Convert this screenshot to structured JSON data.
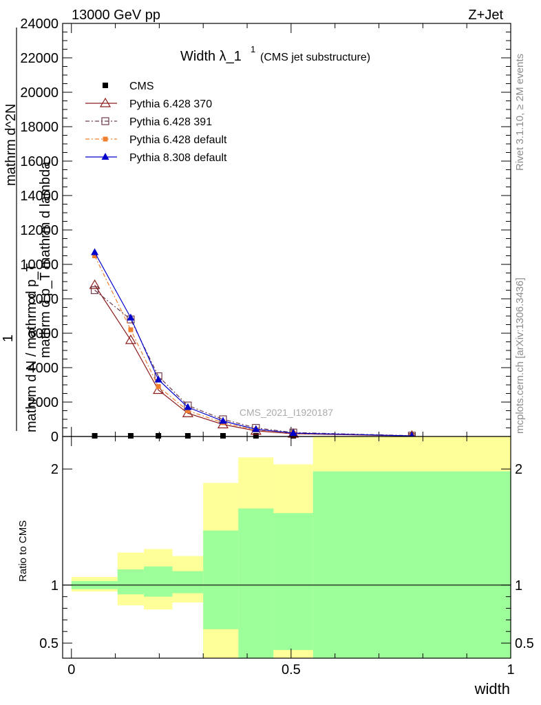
{
  "header": {
    "left": "13000 GeV pp",
    "right": "Z+Jet"
  },
  "side_labels": {
    "rivet": "Rivet 3.1.10, ≥ 2M events",
    "mcplots": "mcplots.cern.ch [arXiv:1306.3436]"
  },
  "chart_data": [
    {
      "type": "line",
      "title_main": "Width λ_1",
      "title_sup": "1",
      "title_note": "(CMS jet substructure)",
      "watermark": "CMS_2021_I1920187",
      "xlabel": "",
      "ylabel_numerator": "1",
      "ylabel_lines": [
        "mathrm d N / mathrm d p_T",
        "mathrm d N",
        "mathrm d p_T mathrm d lambda"
      ],
      "ylabel_top": "mathrm d^2N",
      "xlim": [
        -0.02,
        1.0
      ],
      "ylim": [
        0,
        24000
      ],
      "yticks": [
        0,
        2000,
        4000,
        6000,
        8000,
        10000,
        12000,
        14000,
        16000,
        18000,
        20000,
        22000,
        24000
      ],
      "ytick_labels": [
        "0",
        "2000",
        "4000",
        "6000",
        "8000",
        "10000",
        "12000",
        "14000",
        "16000",
        "18000",
        "20000",
        "22000",
        "24000"
      ],
      "legend_position": "top-left",
      "series": [
        {
          "name": "CMS",
          "color": "#000000",
          "marker": "square",
          "line": "none",
          "x": [
            0.053,
            0.135,
            0.198,
            0.265,
            0.345,
            0.42,
            0.505,
            0.775
          ],
          "y": [
            0,
            0,
            0,
            0,
            0,
            0,
            0,
            0
          ]
        },
        {
          "name": "Pythia 6.428 370",
          "color": "#8b1a1a",
          "marker": "triangle-open",
          "line": "solid",
          "x": [
            0.053,
            0.135,
            0.198,
            0.265,
            0.345,
            0.42,
            0.505,
            0.775
          ],
          "y": [
            8800,
            5600,
            2700,
            1350,
            700,
            330,
            160,
            30
          ]
        },
        {
          "name": "Pythia 6.428 391",
          "color": "#6e3a4a",
          "marker": "square-open",
          "line": "dashdot",
          "x": [
            0.053,
            0.135,
            0.198,
            0.265,
            0.345,
            0.42,
            0.505,
            0.775
          ],
          "y": [
            8500,
            6800,
            3500,
            1800,
            1000,
            500,
            230,
            50
          ]
        },
        {
          "name": "Pythia 6.428 default",
          "color": "#f08030",
          "marker": "square-filled",
          "line": "dashdot",
          "x": [
            0.053,
            0.135,
            0.198,
            0.265,
            0.345,
            0.42,
            0.505,
            0.775
          ],
          "y": [
            10500,
            6200,
            2900,
            1500,
            800,
            380,
            180,
            40
          ]
        },
        {
          "name": "Pythia 8.308 default",
          "color": "#0000cc",
          "marker": "triangle-filled",
          "line": "solid",
          "x": [
            0.053,
            0.135,
            0.198,
            0.265,
            0.345,
            0.42,
            0.505,
            0.775
          ],
          "y": [
            10700,
            6900,
            3300,
            1700,
            900,
            420,
            200,
            35
          ]
        }
      ]
    },
    {
      "type": "area",
      "ylabel": "Ratio to CMS",
      "xlabel": "width",
      "xlim": [
        -0.02,
        1.0
      ],
      "ylim": [
        0.37,
        2.28
      ],
      "xticks": [
        0,
        0.5,
        1
      ],
      "xtick_labels": [
        "0",
        "0.5",
        "1"
      ],
      "yticks": [
        0.5,
        1,
        2
      ],
      "ytick_labels": [
        "0.5",
        "1",
        "2"
      ],
      "bins": [
        {
          "x0": 0.0,
          "x1": 0.105,
          "green": [
            0.965,
            1.035
          ],
          "yellow": [
            0.945,
            1.07
          ]
        },
        {
          "x0": 0.105,
          "x1": 0.165,
          "green": [
            0.92,
            1.135
          ],
          "yellow": [
            0.825,
            1.28
          ]
        },
        {
          "x0": 0.165,
          "x1": 0.23,
          "green": [
            0.9,
            1.16
          ],
          "yellow": [
            0.79,
            1.31
          ]
        },
        {
          "x0": 0.23,
          "x1": 0.3,
          "green": [
            0.93,
            1.12
          ],
          "yellow": [
            0.85,
            1.25
          ]
        },
        {
          "x0": 0.3,
          "x1": 0.38,
          "green": [
            0.37,
            1.47
          ],
          "yellow": [
            0.37,
            1.88
          ]
        },
        {
          "x0": 0.38,
          "x1": 0.46,
          "green": [
            0.37,
            1.66
          ],
          "yellow": [
            0.37,
            2.1
          ]
        },
        {
          "x0": 0.46,
          "x1": 0.55,
          "green": [
            0.37,
            1.62
          ],
          "yellow": [
            0.37,
            2.04
          ]
        },
        {
          "x0": 0.55,
          "x1": 1.0,
          "green": [
            0.37,
            1.98
          ],
          "yellow": [
            0.37,
            2.28
          ]
        }
      ],
      "yellow_low_overrides": [
        {
          "x0": 0.3,
          "x1": 0.38,
          "low": 0.37,
          "high": 0.62
        },
        {
          "x0": 0.38,
          "x1": 0.46,
          "low": 0.37,
          "high": 0.37
        },
        {
          "x0": 0.46,
          "x1": 0.55,
          "low": 0.37,
          "high": 0.44
        }
      ],
      "green_color": "#9cff99",
      "yellow_color": "#ffff99",
      "reference": 1
    }
  ]
}
